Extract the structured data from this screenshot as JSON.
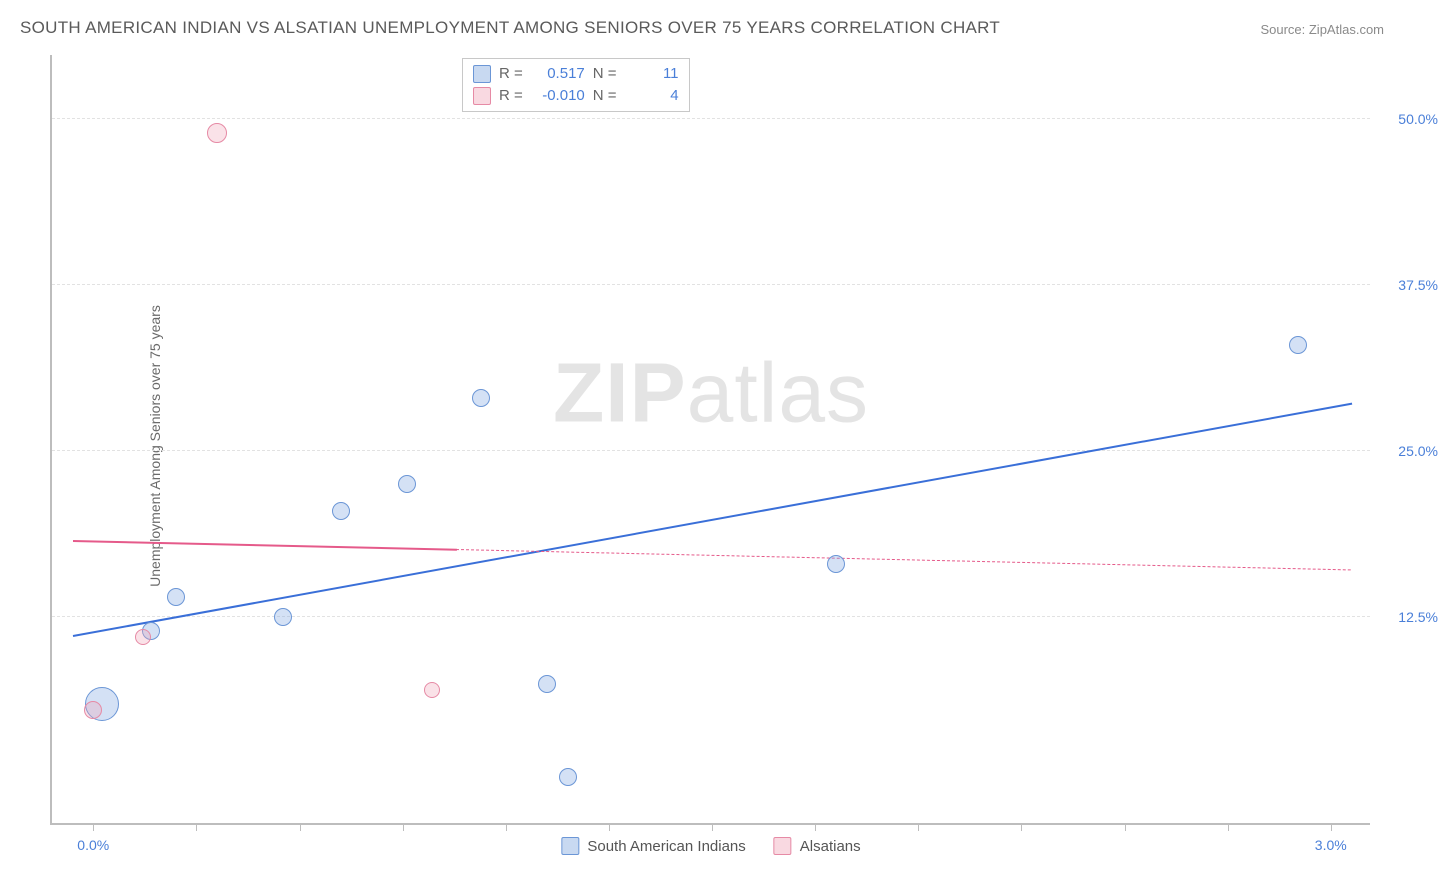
{
  "title": "SOUTH AMERICAN INDIAN VS ALSATIAN UNEMPLOYMENT AMONG SENIORS OVER 75 YEARS CORRELATION CHART",
  "source_label": "Source: ZipAtlas.com",
  "ylabel": "Unemployment Among Seniors over 75 years",
  "watermark_bold": "ZIP",
  "watermark_rest": "atlas",
  "chart": {
    "type": "scatter-correlation",
    "background_color": "#ffffff",
    "grid_color": "#e2e2e2",
    "axis_color": "#bdbdbd",
    "tick_label_color": "#4a7fd8",
    "xlim": [
      -0.1,
      3.1
    ],
    "ylim": [
      -3,
      55
    ],
    "x_ticks": [
      0.0,
      0.25,
      0.5,
      0.75,
      1.0,
      1.25,
      1.5,
      1.75,
      2.0,
      2.25,
      2.5,
      2.75,
      3.0
    ],
    "x_tick_labels": {
      "0": "0.0%",
      "3": "3.0%"
    },
    "y_gridlines": [
      12.5,
      25.0,
      37.5,
      50.0
    ],
    "y_tick_labels": [
      "12.5%",
      "25.0%",
      "37.5%",
      "50.0%"
    ],
    "series": [
      {
        "name": "South American Indians",
        "color_fill": "rgba(132,170,225,0.35)",
        "color_stroke": "#6b96d6",
        "stats": {
          "R": "0.517",
          "N": "11"
        },
        "trend": {
          "x1": -0.05,
          "y1": 11.0,
          "x2": 3.05,
          "y2": 28.5,
          "color": "#3a6fd8",
          "width": 2.5,
          "dash_from_x": null
        },
        "points": [
          {
            "x": 0.02,
            "y": 6.0,
            "r": 34
          },
          {
            "x": 0.14,
            "y": 11.5,
            "r": 18
          },
          {
            "x": 0.2,
            "y": 14.0,
            "r": 18
          },
          {
            "x": 0.46,
            "y": 12.5,
            "r": 18
          },
          {
            "x": 0.6,
            "y": 20.5,
            "r": 18
          },
          {
            "x": 0.76,
            "y": 22.5,
            "r": 18
          },
          {
            "x": 0.94,
            "y": 29.0,
            "r": 18
          },
          {
            "x": 1.1,
            "y": 7.5,
            "r": 18
          },
          {
            "x": 1.15,
            "y": 0.5,
            "r": 18
          },
          {
            "x": 1.8,
            "y": 16.5,
            "r": 18
          },
          {
            "x": 2.92,
            "y": 33.0,
            "r": 18
          }
        ]
      },
      {
        "name": "Alsatians",
        "color_fill": "rgba(240,160,180,0.30)",
        "color_stroke": "#e68aa5",
        "stats": {
          "R": "-0.010",
          "N": "4"
        },
        "trend": {
          "x1": -0.05,
          "y1": 18.2,
          "x2": 3.05,
          "y2": 16.0,
          "color": "#e55a8a",
          "width": 2,
          "dash_from_x": 0.88
        },
        "points": [
          {
            "x": 0.0,
            "y": 5.5,
            "r": 18
          },
          {
            "x": 0.12,
            "y": 11.0,
            "r": 16
          },
          {
            "x": 0.3,
            "y": 49.0,
            "r": 20
          },
          {
            "x": 0.82,
            "y": 7.0,
            "r": 16
          }
        ]
      }
    ],
    "stats_labels": {
      "r": "R  =",
      "n": "N  ="
    },
    "legend_items": [
      "South American Indians",
      "Alsatians"
    ]
  },
  "font": {
    "title_size": 17,
    "label_size": 14,
    "tick_size": 14,
    "legend_size": 15
  }
}
